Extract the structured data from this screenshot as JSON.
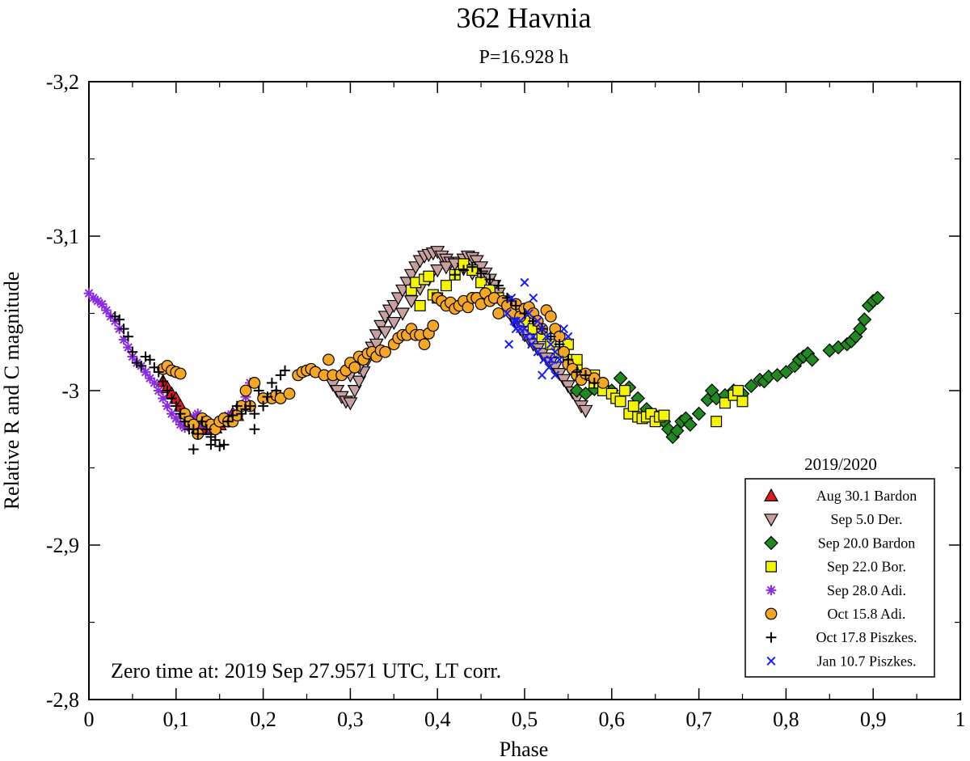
{
  "chart_data": {
    "type": "scatter",
    "title": "362 Havnia",
    "subtitle": "P=16.928 h",
    "xlabel": "Phase",
    "ylabel": "Relative R and C magnitude",
    "xlim": [
      0,
      1
    ],
    "ylim": [
      -3.2,
      -2.8
    ],
    "y_inverted": true,
    "x_ticks": [
      0,
      0.1,
      0.2,
      0.3,
      0.4,
      0.5,
      0.6,
      0.7,
      0.8,
      0.9,
      1
    ],
    "x_tick_labels": [
      "0",
      "0,1",
      "0,2",
      "0,3",
      "0,4",
      "0,5",
      "0,6",
      "0,7",
      "0,8",
      "0,9",
      "1"
    ],
    "y_ticks": [
      -3.2,
      -3.1,
      -3.0,
      -2.9,
      -2.8
    ],
    "y_tick_labels": [
      "-3,2",
      "-3,1",
      "-3",
      "-2,9",
      "-2,8"
    ],
    "annotation": "Zero time at: 2019 Sep 27.9571 UTC, LT corr.",
    "legend_title": "2019/2020",
    "legend_position": "bottom-right",
    "series": [
      {
        "name": "Aug 30.1 Bardon",
        "marker": "triangle-up",
        "color": "#e31a1c",
        "x": [
          0.085,
          0.09,
          0.095,
          0.1,
          0.105,
          0.11,
          0.115,
          0.12,
          0.125,
          0.13,
          0.135,
          0.14,
          0.145,
          0.15,
          0.155,
          0.16,
          0.165,
          0.17
        ],
        "y": [
          -3.006,
          -3.002,
          -2.998,
          -2.995,
          -2.99,
          -2.985,
          -2.98,
          -2.978,
          -2.976,
          -2.975,
          -2.975,
          -2.975,
          -2.976,
          -2.978,
          -2.98,
          -2.982,
          -2.985,
          -2.984
        ]
      },
      {
        "name": "Sep 5.0 Der.",
        "marker": "triangle-down",
        "color": "#c8a0a0",
        "x": [
          0.28,
          0.285,
          0.29,
          0.295,
          0.3,
          0.305,
          0.31,
          0.315,
          0.32,
          0.325,
          0.33,
          0.335,
          0.34,
          0.345,
          0.35,
          0.355,
          0.36,
          0.365,
          0.37,
          0.375,
          0.38,
          0.385,
          0.39,
          0.395,
          0.4,
          0.405,
          0.41,
          0.415,
          0.42,
          0.425,
          0.43,
          0.435,
          0.44,
          0.445,
          0.45,
          0.455,
          0.46,
          0.465,
          0.47,
          0.475,
          0.48,
          0.485,
          0.49,
          0.495,
          0.5,
          0.505,
          0.51,
          0.515,
          0.52,
          0.525,
          0.53,
          0.535,
          0.54,
          0.545,
          0.55,
          0.555,
          0.56,
          0.565,
          0.57,
          0.3,
          0.31,
          0.32,
          0.33,
          0.34,
          0.35,
          0.36,
          0.37,
          0.38,
          0.39,
          0.4,
          0.41,
          0.42,
          0.43,
          0.44,
          0.45,
          0.46
        ],
        "y": [
          -3.004,
          -3.0,
          -2.996,
          -2.993,
          -2.992,
          -3.0,
          -3.006,
          -3.012,
          -3.02,
          -3.028,
          -3.036,
          -3.042,
          -3.048,
          -3.052,
          -3.055,
          -3.06,
          -3.065,
          -3.07,
          -3.075,
          -3.08,
          -3.084,
          -3.087,
          -3.088,
          -3.089,
          -3.09,
          -3.087,
          -3.085,
          -3.083,
          -3.082,
          -3.083,
          -3.085,
          -3.087,
          -3.086,
          -3.084,
          -3.08,
          -3.076,
          -3.072,
          -3.068,
          -3.063,
          -3.058,
          -3.053,
          -3.048,
          -3.044,
          -3.04,
          -3.036,
          -3.033,
          -3.03,
          -3.027,
          -3.024,
          -3.021,
          -3.018,
          -3.015,
          -3.011,
          -3.007,
          -3.003,
          -2.999,
          -2.995,
          -2.99,
          -2.987,
          -3.01,
          -3.015,
          -3.022,
          -3.03,
          -3.038,
          -3.044,
          -3.05,
          -3.058,
          -3.066,
          -3.072,
          -3.078,
          -3.08,
          -3.082,
          -3.079,
          -3.076,
          -3.074,
          -3.072
        ]
      },
      {
        "name": "Sep 20.0 Bardon",
        "marker": "diamond",
        "color": "#1f8a1f",
        "x": [
          0.56,
          0.57,
          0.58,
          0.59,
          0.6,
          0.61,
          0.62,
          0.63,
          0.64,
          0.65,
          0.66,
          0.665,
          0.67,
          0.675,
          0.68,
          0.685,
          0.69,
          0.7,
          0.71,
          0.715,
          0.72,
          0.73,
          0.74,
          0.75,
          0.76,
          0.77,
          0.775,
          0.78,
          0.79,
          0.8,
          0.81,
          0.815,
          0.82,
          0.825,
          0.83,
          0.85,
          0.86,
          0.87,
          0.875,
          0.88,
          0.885,
          0.89,
          0.895,
          0.9,
          0.905
        ],
        "y": [
          -3.0,
          -2.998,
          -3.001,
          -3.003,
          -3.0,
          -3.008,
          -3.002,
          -2.995,
          -2.988,
          -2.984,
          -2.98,
          -2.975,
          -2.97,
          -2.974,
          -2.98,
          -2.982,
          -2.978,
          -2.985,
          -2.994,
          -3.0,
          -2.995,
          -2.997,
          -3.0,
          -2.998,
          -3.003,
          -3.007,
          -3.006,
          -3.009,
          -3.01,
          -3.012,
          -3.016,
          -3.02,
          -3.022,
          -3.024,
          -3.02,
          -3.026,
          -3.028,
          -3.03,
          -3.032,
          -3.035,
          -3.04,
          -3.046,
          -3.055,
          -3.058,
          -3.06
        ]
      },
      {
        "name": "Sep 22.0 Bor.",
        "marker": "square",
        "color": "#f5f500",
        "x": [
          0.37,
          0.375,
          0.38,
          0.385,
          0.39,
          0.395,
          0.4,
          0.41,
          0.42,
          0.43,
          0.44,
          0.45,
          0.46,
          0.47,
          0.48,
          0.49,
          0.5,
          0.51,
          0.52,
          0.53,
          0.54,
          0.55,
          0.56,
          0.57,
          0.58,
          0.59,
          0.6,
          0.605,
          0.61,
          0.615,
          0.62,
          0.625,
          0.63,
          0.635,
          0.64,
          0.645,
          0.65,
          0.655,
          0.66,
          0.72,
          0.73,
          0.74,
          0.745,
          0.75,
          0.55,
          0.56,
          0.57,
          0.58
        ],
        "y": [
          -3.065,
          -3.07,
          -3.055,
          -3.072,
          -3.074,
          -3.062,
          -3.06,
          -3.068,
          -3.075,
          -3.082,
          -3.078,
          -3.07,
          -3.065,
          -3.06,
          -3.055,
          -3.05,
          -3.045,
          -3.04,
          -3.035,
          -3.03,
          -3.025,
          -3.02,
          -3.015,
          -3.01,
          -3.005,
          -3.0,
          -2.998,
          -2.995,
          -2.993,
          -3.0,
          -2.985,
          -2.99,
          -2.983,
          -2.982,
          -2.983,
          -2.985,
          -2.98,
          -2.983,
          -2.984,
          -2.98,
          -2.992,
          -2.997,
          -3.0,
          -2.993,
          -3.03,
          -3.02,
          -3.01,
          -3.01
        ]
      },
      {
        "name": "Sep 28.0 Adi.",
        "marker": "asterisk",
        "color": "#8a2be2",
        "x": [
          0.0,
          0.005,
          0.01,
          0.015,
          0.02,
          0.025,
          0.03,
          0.035,
          0.04,
          0.045,
          0.05,
          0.055,
          0.06,
          0.065,
          0.07,
          0.075,
          0.08,
          0.085,
          0.09,
          0.095,
          0.1,
          0.105,
          0.11,
          0.115,
          0.12,
          0.125,
          0.13,
          0.14,
          0.15,
          0.16,
          0.17,
          0.175,
          0.18,
          0.185
        ],
        "y": [
          -3.063,
          -3.06,
          -3.058,
          -3.056,
          -3.052,
          -3.048,
          -3.045,
          -3.04,
          -3.033,
          -3.028,
          -3.022,
          -3.018,
          -3.016,
          -3.012,
          -3.008,
          -3.005,
          -3.0,
          -2.995,
          -2.99,
          -2.985,
          -2.982,
          -2.978,
          -2.976,
          -2.98,
          -2.983,
          -2.985,
          -2.978,
          -2.975,
          -2.98,
          -2.984,
          -2.986,
          -2.99,
          -2.996,
          -3.005
        ]
      },
      {
        "name": "Oct 15.8 Adi.",
        "marker": "circle",
        "color": "#f5a623",
        "x": [
          0.085,
          0.09,
          0.095,
          0.1,
          0.105,
          0.11,
          0.115,
          0.12,
          0.125,
          0.13,
          0.135,
          0.14,
          0.145,
          0.15,
          0.155,
          0.16,
          0.165,
          0.17,
          0.175,
          0.18,
          0.185,
          0.19,
          0.2,
          0.21,
          0.215,
          0.22,
          0.23,
          0.24,
          0.245,
          0.25,
          0.255,
          0.26,
          0.27,
          0.275,
          0.28,
          0.29,
          0.295,
          0.3,
          0.305,
          0.31,
          0.315,
          0.32,
          0.325,
          0.33,
          0.335,
          0.34,
          0.35,
          0.355,
          0.36,
          0.365,
          0.37,
          0.375,
          0.38,
          0.385,
          0.39,
          0.395,
          0.4,
          0.405,
          0.41,
          0.415,
          0.42,
          0.425,
          0.43,
          0.435,
          0.44,
          0.445,
          0.45,
          0.455,
          0.46,
          0.465,
          0.47,
          0.475,
          0.48,
          0.485,
          0.49,
          0.495,
          0.5,
          0.505,
          0.51,
          0.515,
          0.52,
          0.525,
          0.53,
          0.535,
          0.54,
          0.545,
          0.55,
          0.555,
          0.56,
          0.565,
          0.57,
          0.58,
          0.59
        ],
        "y": [
          -3.014,
          -3.016,
          -3.013,
          -3.012,
          -3.011,
          -2.985,
          -2.98,
          -2.978,
          -2.972,
          -2.982,
          -2.98,
          -2.978,
          -2.975,
          -2.98,
          -2.982,
          -2.98,
          -2.98,
          -2.984,
          -2.99,
          -3.0,
          -2.99,
          -3.005,
          -2.995,
          -2.995,
          -2.997,
          -2.995,
          -2.998,
          -3.01,
          -3.012,
          -3.013,
          -3.014,
          -3.012,
          -3.01,
          -3.02,
          -3.01,
          -3.01,
          -3.013,
          -3.018,
          -3.015,
          -3.022,
          -3.02,
          -3.024,
          -3.025,
          -3.022,
          -3.026,
          -3.025,
          -3.03,
          -3.034,
          -3.036,
          -3.036,
          -3.04,
          -3.036,
          -3.036,
          -3.03,
          -3.037,
          -3.042,
          -3.06,
          -3.058,
          -3.055,
          -3.057,
          -3.053,
          -3.055,
          -3.058,
          -3.054,
          -3.06,
          -3.06,
          -3.056,
          -3.063,
          -3.058,
          -3.06,
          -3.05,
          -3.058,
          -3.055,
          -3.05,
          -3.056,
          -3.048,
          -3.053,
          -3.054,
          -3.05,
          -3.045,
          -3.04,
          -3.052,
          -3.048,
          -3.04,
          -3.035,
          -3.025,
          -3.017,
          -3.014,
          -3.01,
          -3.007,
          -3.011,
          -3.008,
          -3.005
        ]
      },
      {
        "name": "Oct 17.8 Piszkes.",
        "marker": "plus",
        "color": "#000000",
        "x": [
          0.03,
          0.035,
          0.04,
          0.045,
          0.05,
          0.055,
          0.06,
          0.065,
          0.07,
          0.075,
          0.08,
          0.085,
          0.09,
          0.095,
          0.1,
          0.105,
          0.11,
          0.115,
          0.12,
          0.125,
          0.13,
          0.135,
          0.14,
          0.145,
          0.15,
          0.155,
          0.16,
          0.165,
          0.17,
          0.175,
          0.18,
          0.185,
          0.19,
          0.195,
          0.2,
          0.205,
          0.21,
          0.215,
          0.22,
          0.225,
          0.19,
          0.42,
          0.43,
          0.44,
          0.45,
          0.46,
          0.47,
          0.48,
          0.485,
          0.49,
          0.5,
          0.51,
          0.52,
          0.53,
          0.54,
          0.55,
          0.56,
          0.57,
          0.58,
          0.12,
          0.14
        ],
        "y": [
          -3.048,
          -3.046,
          -3.04,
          -3.035,
          -3.025,
          -3.018,
          -3.016,
          -3.022,
          -3.02,
          -3.015,
          -3.012,
          -3.006,
          -3.0,
          -2.995,
          -2.99,
          -2.985,
          -2.98,
          -2.975,
          -2.975,
          -2.972,
          -2.98,
          -2.975,
          -2.965,
          -2.968,
          -2.964,
          -2.965,
          -2.98,
          -2.984,
          -2.99,
          -2.985,
          -2.988,
          -2.99,
          -2.985,
          -3.0,
          -2.99,
          -2.996,
          -3.005,
          -3.0,
          -3.01,
          -3.013,
          -2.975,
          -3.075,
          -3.078,
          -3.08,
          -3.076,
          -3.072,
          -3.068,
          -3.06,
          -3.058,
          -3.055,
          -3.05,
          -3.045,
          -3.04,
          -3.035,
          -3.03,
          -3.02,
          -3.012,
          -3.01,
          -3.005,
          -2.962,
          -2.97
        ]
      },
      {
        "name": "Jan 10.7 Piszkes.",
        "marker": "cross",
        "color": "#1a1aff",
        "x": [
          0.48,
          0.485,
          0.49,
          0.495,
          0.5,
          0.505,
          0.51,
          0.515,
          0.52,
          0.525,
          0.53,
          0.535,
          0.54,
          0.545,
          0.55,
          0.482,
          0.488,
          0.495,
          0.502,
          0.508,
          0.515,
          0.522,
          0.528,
          0.535,
          0.5,
          0.51,
          0.52,
          0.49,
          0.53
        ],
        "y": [
          -3.05,
          -3.06,
          -3.045,
          -3.045,
          -3.07,
          -3.05,
          -3.06,
          -3.045,
          -3.04,
          -3.035,
          -3.03,
          -3.025,
          -3.02,
          -3.04,
          -3.035,
          -3.03,
          -3.045,
          -3.04,
          -3.035,
          -3.03,
          -3.025,
          -3.02,
          -3.015,
          -3.01,
          -3.04,
          -3.035,
          -3.01,
          -3.04,
          -3.02
        ]
      }
    ]
  }
}
